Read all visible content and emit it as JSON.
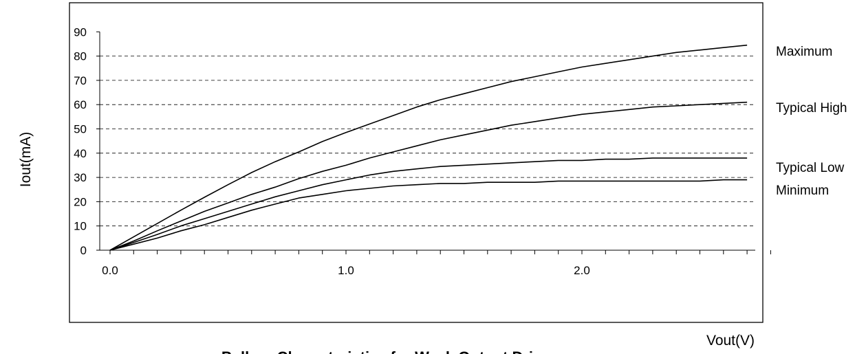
{
  "chart_data": {
    "type": "line",
    "title": "Pull-up Characteristics for Weak Output Driver",
    "xlabel": "Vout(V)",
    "ylabel": "Iout(mA)",
    "xlim": [
      0,
      2.8
    ],
    "ylim": [
      0,
      90
    ],
    "xticks": [
      0.0,
      1.0,
      2.0
    ],
    "xtick_labels": [
      "0.0",
      "1.0",
      "2.0"
    ],
    "yticks": [
      0,
      10,
      20,
      30,
      40,
      50,
      60,
      70,
      80,
      90
    ],
    "ytick_labels": [
      "0",
      "10",
      "20",
      "30",
      "40",
      "50",
      "60",
      "70",
      "80",
      "90"
    ],
    "grid": "horizontal dashed",
    "legend": "labels at right end of each line",
    "series": [
      {
        "name": "Maximum",
        "x": [
          0.0,
          0.1,
          0.2,
          0.3,
          0.4,
          0.5,
          0.6,
          0.7,
          0.8,
          0.9,
          1.0,
          1.1,
          1.2,
          1.3,
          1.4,
          1.5,
          1.6,
          1.7,
          1.8,
          1.9,
          2.0,
          2.1,
          2.2,
          2.3,
          2.4,
          2.5,
          2.6,
          2.7
        ],
        "y": [
          0,
          5.5,
          11,
          16.5,
          21.8,
          27,
          32,
          36.5,
          40.5,
          44.8,
          48.5,
          52,
          55.5,
          59,
          62,
          64.5,
          67,
          69.5,
          71.5,
          73.5,
          75.5,
          77,
          78.5,
          80,
          81.5,
          82.5,
          83.5,
          84.5
        ]
      },
      {
        "name": "Typical High",
        "x": [
          0.0,
          0.1,
          0.2,
          0.3,
          0.4,
          0.5,
          0.6,
          0.7,
          0.8,
          0.9,
          1.0,
          1.1,
          1.2,
          1.3,
          1.4,
          1.5,
          1.6,
          1.7,
          1.8,
          1.9,
          2.0,
          2.1,
          2.2,
          2.3,
          2.4,
          2.5,
          2.6,
          2.7
        ],
        "y": [
          0,
          3.8,
          8,
          12,
          16,
          19.5,
          23,
          26,
          29.5,
          32.5,
          35,
          38,
          40.5,
          43,
          45.5,
          47.5,
          49.5,
          51.5,
          53,
          54.5,
          56,
          57,
          58,
          59,
          59.5,
          60,
          60.5,
          61
        ]
      },
      {
        "name": "Typical Low",
        "x": [
          0.0,
          0.1,
          0.2,
          0.3,
          0.4,
          0.5,
          0.6,
          0.7,
          0.8,
          0.9,
          1.0,
          1.1,
          1.2,
          1.3,
          1.4,
          1.5,
          1.6,
          1.7,
          1.8,
          1.9,
          2.0,
          2.1,
          2.2,
          2.3,
          2.4,
          2.5,
          2.6,
          2.7
        ],
        "y": [
          0,
          3.2,
          6.5,
          10,
          13,
          16,
          19,
          22,
          24.5,
          27,
          29,
          31,
          32.5,
          33.5,
          34.5,
          35,
          35.5,
          36,
          36.5,
          37,
          37,
          37.5,
          37.5,
          38,
          38,
          38,
          38,
          38
        ]
      },
      {
        "name": "Minimum",
        "x": [
          0.0,
          0.1,
          0.2,
          0.3,
          0.4,
          0.5,
          0.6,
          0.7,
          0.8,
          0.9,
          1.0,
          1.1,
          1.2,
          1.3,
          1.4,
          1.5,
          1.6,
          1.7,
          1.8,
          1.9,
          2.0,
          2.1,
          2.2,
          2.3,
          2.4,
          2.5,
          2.6,
          2.7
        ],
        "y": [
          0,
          2.5,
          5,
          8,
          10.5,
          13.5,
          16.5,
          19,
          21.5,
          23,
          24.5,
          25.5,
          26.5,
          27,
          27.5,
          27.5,
          28,
          28,
          28,
          28.5,
          28.5,
          28.5,
          28.5,
          28.5,
          28.5,
          28.5,
          29,
          29
        ]
      }
    ]
  }
}
